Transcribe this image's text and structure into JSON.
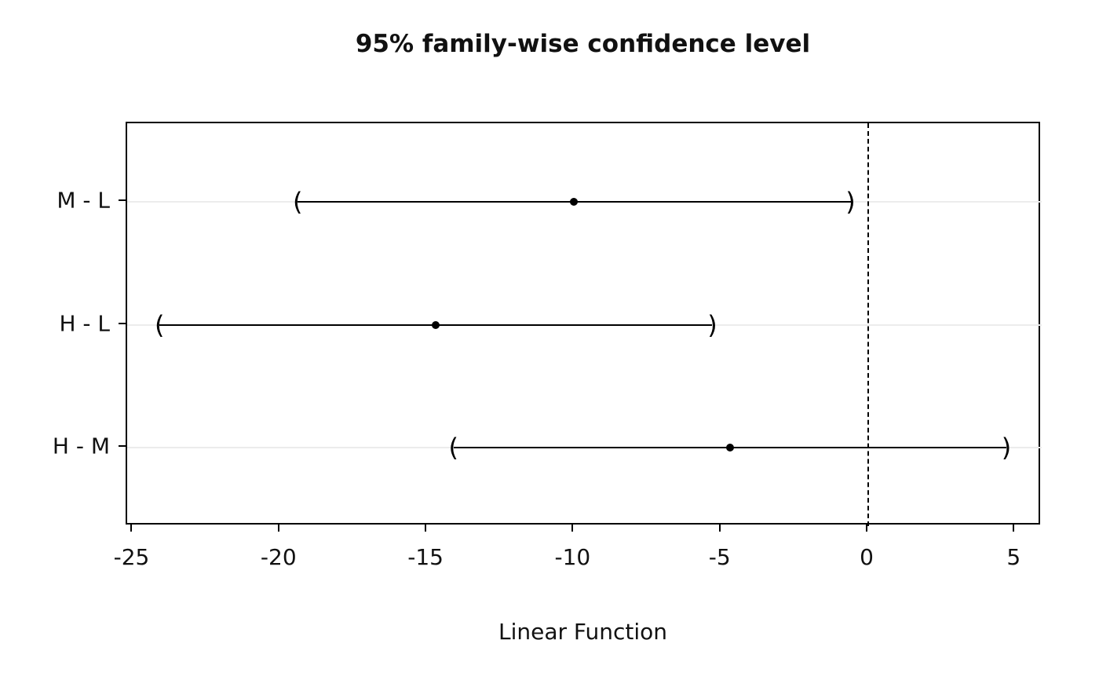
{
  "chart_data": {
    "type": "interval",
    "title": "95% family-wise confidence level",
    "xlabel": "Linear Function",
    "ylabel": "",
    "x_ticks": [
      -25,
      -20,
      -15,
      -10,
      -5,
      0,
      5
    ],
    "xlim": [
      -25.2,
      5.9
    ],
    "grid": "light horizontal line per comparison row",
    "legend": "none",
    "reference_line": {
      "x": 0,
      "style": "dashed"
    },
    "comparisons": [
      {
        "label": "M - L",
        "estimate": -10.0,
        "lower": -19.4,
        "upper": -0.6
      },
      {
        "label": "H - L",
        "estimate": -14.7,
        "lower": -24.1,
        "upper": -5.3
      },
      {
        "label": "H - M",
        "estimate": -4.7,
        "lower": -14.1,
        "upper": 4.7
      }
    ]
  }
}
